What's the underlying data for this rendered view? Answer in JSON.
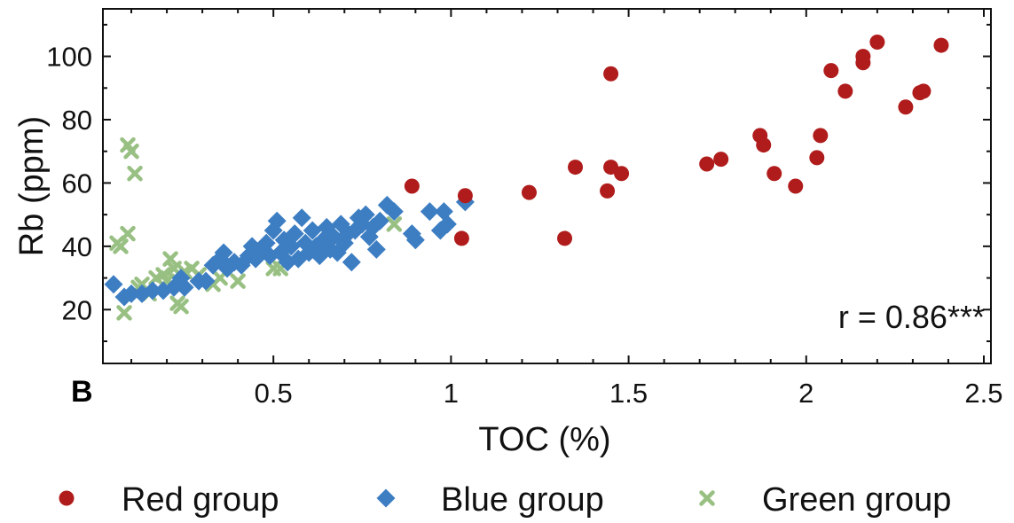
{
  "chart_data": {
    "type": "scatter",
    "panel_label": "B",
    "xlabel": "TOC (%)",
    "ylabel": "Rb (ppm)",
    "xlim": [
      0.02,
      2.52
    ],
    "ylim": [
      3,
      115
    ],
    "xticks": [
      0.5,
      1,
      1.5,
      2,
      2.5
    ],
    "xtick_labels": [
      "0.5",
      "1",
      "1.5",
      "2",
      "2.5"
    ],
    "yticks": [
      20,
      40,
      60,
      80,
      100
    ],
    "ytick_labels": [
      "20",
      "40",
      "60",
      "80",
      "100"
    ],
    "grid": false,
    "legend_position": "bottom",
    "annotation": "r = 0.86***",
    "series": [
      {
        "name": "Red group",
        "marker": "circle",
        "color": "#b01c1c",
        "points": [
          [
            0.89,
            59
          ],
          [
            1.03,
            42.5
          ],
          [
            1.04,
            56
          ],
          [
            1.22,
            57
          ],
          [
            1.32,
            42.5
          ],
          [
            1.35,
            65
          ],
          [
            1.44,
            57.5
          ],
          [
            1.45,
            65
          ],
          [
            1.45,
            94.5
          ],
          [
            1.48,
            63
          ],
          [
            1.72,
            66
          ],
          [
            1.76,
            67.5
          ],
          [
            1.87,
            75
          ],
          [
            1.88,
            72
          ],
          [
            1.91,
            63
          ],
          [
            1.97,
            59
          ],
          [
            2.03,
            68
          ],
          [
            2.04,
            75
          ],
          [
            2.07,
            95.5
          ],
          [
            2.11,
            89
          ],
          [
            2.16,
            98
          ],
          [
            2.16,
            100
          ],
          [
            2.2,
            104.5
          ],
          [
            2.28,
            84
          ],
          [
            2.32,
            88.5
          ],
          [
            2.33,
            89
          ],
          [
            2.38,
            103.5
          ]
        ]
      },
      {
        "name": "Blue group",
        "marker": "diamond",
        "color": "#3d7ec3",
        "points": [
          [
            0.05,
            28
          ],
          [
            0.08,
            24
          ],
          [
            0.1,
            25
          ],
          [
            0.13,
            25
          ],
          [
            0.16,
            26
          ],
          [
            0.19,
            26
          ],
          [
            0.22,
            27
          ],
          [
            0.24,
            30
          ],
          [
            0.25,
            27
          ],
          [
            0.29,
            29
          ],
          [
            0.31,
            29
          ],
          [
            0.33,
            34
          ],
          [
            0.35,
            36
          ],
          [
            0.36,
            38
          ],
          [
            0.37,
            33
          ],
          [
            0.39,
            35
          ],
          [
            0.41,
            34
          ],
          [
            0.43,
            37
          ],
          [
            0.44,
            40
          ],
          [
            0.45,
            36
          ],
          [
            0.47,
            39
          ],
          [
            0.48,
            41
          ],
          [
            0.49,
            37
          ],
          [
            0.5,
            45
          ],
          [
            0.51,
            48
          ],
          [
            0.52,
            38
          ],
          [
            0.53,
            42
          ],
          [
            0.54,
            35
          ],
          [
            0.55,
            40
          ],
          [
            0.56,
            44
          ],
          [
            0.57,
            36
          ],
          [
            0.58,
            49
          ],
          [
            0.59,
            41
          ],
          [
            0.6,
            38
          ],
          [
            0.61,
            45
          ],
          [
            0.62,
            40
          ],
          [
            0.63,
            37
          ],
          [
            0.64,
            42
          ],
          [
            0.65,
            46
          ],
          [
            0.66,
            39
          ],
          [
            0.67,
            43
          ],
          [
            0.68,
            38
          ],
          [
            0.69,
            47
          ],
          [
            0.7,
            41
          ],
          [
            0.71,
            44
          ],
          [
            0.72,
            35
          ],
          [
            0.73,
            45
          ],
          [
            0.74,
            49
          ],
          [
            0.75,
            47
          ],
          [
            0.76,
            50
          ],
          [
            0.77,
            43
          ],
          [
            0.78,
            46
          ],
          [
            0.79,
            39
          ],
          [
            0.8,
            48
          ],
          [
            0.82,
            53
          ],
          [
            0.84,
            51
          ],
          [
            0.89,
            44
          ],
          [
            0.9,
            42
          ],
          [
            0.94,
            51
          ],
          [
            0.97,
            45
          ],
          [
            0.98,
            51
          ],
          [
            0.99,
            47
          ],
          [
            1.04,
            54
          ]
        ]
      },
      {
        "name": "Green group",
        "marker": "x",
        "color": "#99c083",
        "points": [
          [
            0.06,
            41
          ],
          [
            0.07,
            40
          ],
          [
            0.08,
            19
          ],
          [
            0.09,
            44
          ],
          [
            0.09,
            72
          ],
          [
            0.1,
            70
          ],
          [
            0.11,
            63
          ],
          [
            0.12,
            27
          ],
          [
            0.13,
            28
          ],
          [
            0.15,
            25
          ],
          [
            0.17,
            30
          ],
          [
            0.19,
            31
          ],
          [
            0.2,
            29
          ],
          [
            0.21,
            36
          ],
          [
            0.22,
            33
          ],
          [
            0.23,
            22
          ],
          [
            0.24,
            21
          ],
          [
            0.25,
            32
          ],
          [
            0.27,
            33
          ],
          [
            0.29,
            31
          ],
          [
            0.33,
            28
          ],
          [
            0.35,
            30
          ],
          [
            0.4,
            29
          ],
          [
            0.5,
            33
          ],
          [
            0.52,
            33
          ],
          [
            0.84,
            47
          ]
        ]
      }
    ]
  }
}
